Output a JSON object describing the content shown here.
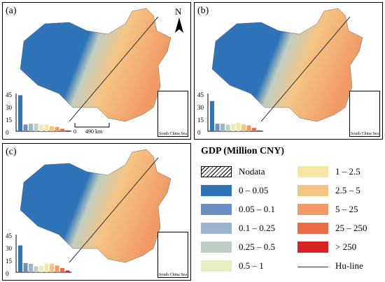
{
  "panels": [
    {
      "label": "(a)",
      "y_ticks": [
        "45",
        "30",
        "15",
        "0"
      ],
      "bars": [
        43,
        8,
        9,
        9,
        8,
        8,
        6,
        5,
        3,
        1
      ],
      "scalebar": {
        "zero": "0",
        "distance": "490 km"
      },
      "north": "N",
      "inset_label": "South China Sea"
    },
    {
      "label": "(b)",
      "y_ticks": [
        "45",
        "30",
        "15",
        "0"
      ],
      "bars": [
        36,
        9,
        9,
        8,
        9,
        10,
        8,
        7,
        4,
        1
      ],
      "inset_label": "South China Sea"
    },
    {
      "label": "(c)",
      "y_ticks": [
        "45",
        "30",
        "15",
        "0"
      ],
      "bars": [
        32,
        11,
        10,
        7,
        8,
        10,
        10,
        8,
        5,
        2
      ],
      "inset_label": "South China Sea"
    }
  ],
  "legend": {
    "title": "GDP (Million CNY)",
    "items": [
      {
        "label": "Nodata",
        "color": "hatch"
      },
      {
        "label": "0 – 0.05",
        "color": "#2f73b9"
      },
      {
        "label": "0.05 – 0.1",
        "color": "#6b8fc4"
      },
      {
        "label": "0.1 – 0.25",
        "color": "#9db4cf"
      },
      {
        "label": "0.25 – 0.5",
        "color": "#c0cec1"
      },
      {
        "label": "0.5 – 1",
        "color": "#e8eec0"
      },
      {
        "label": "1 – 2.5",
        "color": "#f7e5a3"
      },
      {
        "label": "2.5 – 5",
        "color": "#f5c483"
      },
      {
        "label": "5 – 25",
        "color": "#f19a66"
      },
      {
        "label": "25 – 250",
        "color": "#ec6a48"
      },
      {
        "label": "> 250",
        "color": "#d7231f"
      },
      {
        "label": "Hu-line",
        "color": "line"
      }
    ]
  }
}
